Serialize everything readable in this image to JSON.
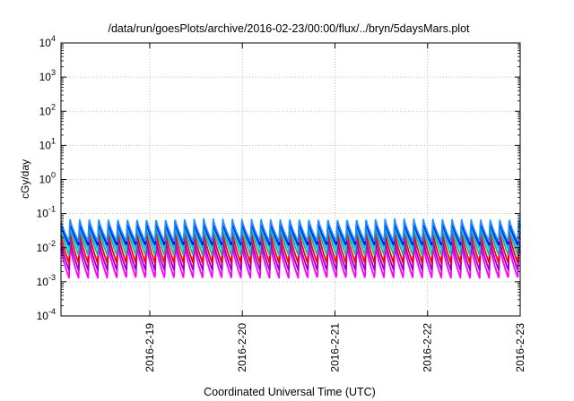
{
  "chart_data": {
    "type": "line",
    "title": "/data/run/goesPlots/archive/2016-02-23/00:00/flux/../bryn/5daysMars.plot",
    "xlabel": "Coordinated Universal Time (UTC)",
    "ylabel": "cGy/day",
    "x_range": [
      "2016-02-18 01:00",
      "2016-02-23 00:00"
    ],
    "x_ticks": [
      "2016-2-19",
      "2016-2-20",
      "2016-2-21",
      "2016-2-22",
      "2016-2-23"
    ],
    "y_scale": "log",
    "ylim": [
      0.0001,
      10000
    ],
    "y_ticks": [
      {
        "base": "10",
        "exp": "-4"
      },
      {
        "base": "10",
        "exp": "-3"
      },
      {
        "base": "10",
        "exp": "-2"
      },
      {
        "base": "10",
        "exp": "-1"
      },
      {
        "base": "10",
        "exp": "0"
      },
      {
        "base": "10",
        "exp": "1"
      },
      {
        "base": "10",
        "exp": "2"
      },
      {
        "base": "10",
        "exp": "3"
      },
      {
        "base": "10",
        "exp": "4"
      }
    ],
    "grid": true,
    "waveform": {
      "cycles_per_day": 9.7,
      "note": "sawtooth: sharp rise then exponential-like decay each cycle"
    },
    "series": [
      {
        "color": "#ff00ff",
        "peak": 0.012,
        "trough": 0.0013
      },
      {
        "color": "#9400d3",
        "peak": 0.018,
        "trough": 0.0022
      },
      {
        "color": "#ff0000",
        "peak": 0.03,
        "trough": 0.0035
      },
      {
        "color": "#20b2aa",
        "peak": 0.045,
        "trough": 0.006
      },
      {
        "color": "#00ced1",
        "peak": 0.055,
        "trough": 0.009
      },
      {
        "color": "#0000ff",
        "peak": 0.06,
        "trough": 0.012
      },
      {
        "color": "#1e90ff",
        "peak": 0.07,
        "trough": 0.015
      }
    ]
  }
}
